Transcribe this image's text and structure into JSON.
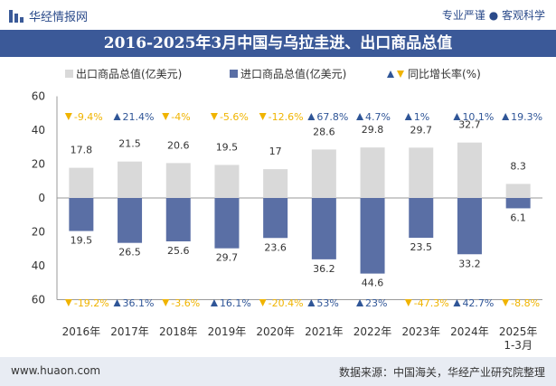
{
  "header": {
    "site_name": "华经情报网",
    "tagline": "专业严谨 ● 客观科学"
  },
  "footer": {
    "url": "www.huaon.com",
    "source": "数据来源：中国海关，华经产业研究院整理"
  },
  "colors": {
    "export": "#d9d9d9",
    "import": "#5a6fa5",
    "up": "#2f5597",
    "down": "#f0b400",
    "title_bg": "#3b5998"
  },
  "chart_data": {
    "type": "bar",
    "title": "2016-2025年3月中国与乌拉圭进、出口商品总值",
    "legend": {
      "export": "出口商品总值(亿美元)",
      "import": "进口商品总值(亿美元)",
      "yoy": "同比增长率(%)"
    },
    "categories": [
      "2016年",
      "2017年",
      "2018年",
      "2019年",
      "2020年",
      "2021年",
      "2022年",
      "2023年",
      "2024年",
      "2025年\n1-3月"
    ],
    "series": [
      {
        "name": "出口商品总值(亿美元)",
        "values": [
          17.8,
          21.5,
          20.6,
          19.5,
          17,
          28.6,
          29.8,
          29.7,
          32.7,
          8.3
        ]
      },
      {
        "name": "进口商品总值(亿美元)",
        "values": [
          19.5,
          26.5,
          25.6,
          29.7,
          23.6,
          36.2,
          44.6,
          23.5,
          33.2,
          6.1
        ]
      }
    ],
    "export_yoy": [
      -9.4,
      21.4,
      -4,
      -5.6,
      -12.6,
      67.8,
      4.7,
      1,
      10.1,
      19.3
    ],
    "import_yoy": [
      -19.2,
      36.1,
      -3.6,
      16.1,
      -20.4,
      53,
      23,
      -47.3,
      42.7,
      -8.8
    ],
    "yaxis_ticks": [
      "60",
      "40",
      "20",
      "0",
      "20",
      "40",
      "60"
    ],
    "ylim": [
      -60,
      60
    ]
  }
}
